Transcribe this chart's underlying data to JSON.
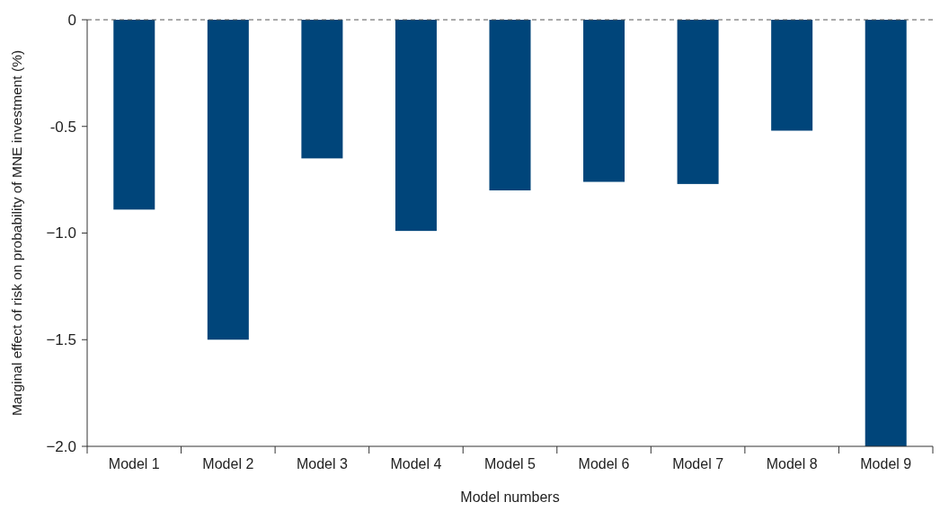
{
  "chart_data": {
    "type": "bar",
    "xlabel": "Model numbers",
    "ylabel": "Marginal effect of risk on probability of MNE investment (%)",
    "categories": [
      "Model 1",
      "Model 2",
      "Model 3",
      "Model 4",
      "Model 5",
      "Model 6",
      "Model 7",
      "Model 8",
      "Model 9"
    ],
    "values": [
      -0.89,
      -1.5,
      -0.65,
      -0.99,
      -0.8,
      -0.76,
      -0.77,
      -0.52,
      -2.0
    ],
    "color": "#00457a",
    "ylim": [
      -2.0,
      0
    ],
    "yticks": [
      {
        "value": -2.0,
        "label": "−2.0"
      },
      {
        "value": -1.5,
        "label": "−1.5"
      },
      {
        "value": -1.0,
        "label": "−1.0"
      },
      {
        "value": -0.5,
        "label": "-0.5"
      },
      {
        "value": 0,
        "label": "0"
      }
    ],
    "ref_lines": [
      {
        "axis": "y",
        "value": 0,
        "color": "#555555",
        "line_style": "dashed"
      }
    ],
    "grid": false
  }
}
